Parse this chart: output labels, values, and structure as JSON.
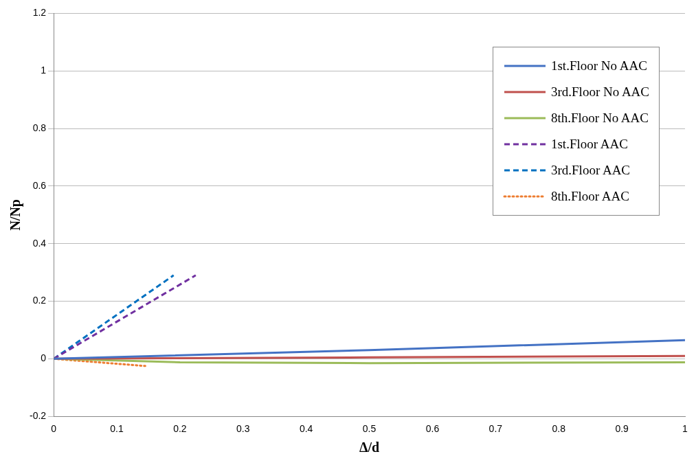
{
  "chart_data": {
    "type": "line",
    "xlabel": "Δ/d",
    "ylabel": "N/Np",
    "xlim": [
      0,
      1
    ],
    "xticks": [
      0,
      0.1,
      0.2,
      0.3,
      0.4,
      0.5,
      0.6,
      0.7,
      0.8,
      0.9,
      1
    ],
    "ylim": [
      -0.2,
      1.2
    ],
    "yticks": [
      -0.2,
      0,
      0.2,
      0.4,
      0.6,
      0.8,
      1,
      1.2
    ],
    "grid": "y",
    "legend": "top right",
    "marker": "none",
    "series": [
      {
        "name": "1st.Floor No AAC",
        "color": "#4472c4",
        "line_style": "solid",
        "x": [
          0,
          0.5,
          1
        ],
        "values": [
          0,
          0.03,
          0.065
        ]
      },
      {
        "name": "3rd.Floor No AAC",
        "color": "#c0504d",
        "line_style": "solid",
        "x": [
          0,
          0.5,
          1
        ],
        "values": [
          0,
          0.005,
          0.01
        ]
      },
      {
        "name": "8th.Floor No AAC",
        "color": "#9bbb59",
        "line_style": "solid",
        "x": [
          0,
          0.2,
          0.5,
          1
        ],
        "values": [
          0,
          -0.012,
          -0.015,
          -0.012
        ]
      },
      {
        "name": "1st.Floor AAC",
        "color": "#7030a0",
        "line_style": "dashed",
        "x": [
          0,
          0.225
        ],
        "values": [
          0,
          0.29
        ]
      },
      {
        "name": "3rd.Floor AAC",
        "color": "#0070c0",
        "line_style": "dashed",
        "x": [
          0,
          0.19
        ],
        "values": [
          0,
          0.29
        ]
      },
      {
        "name": "8th.Floor AAC",
        "color": "#ed7d31",
        "line_style": "dotted",
        "x": [
          0,
          0.145
        ],
        "values": [
          0,
          -0.025
        ]
      }
    ]
  }
}
